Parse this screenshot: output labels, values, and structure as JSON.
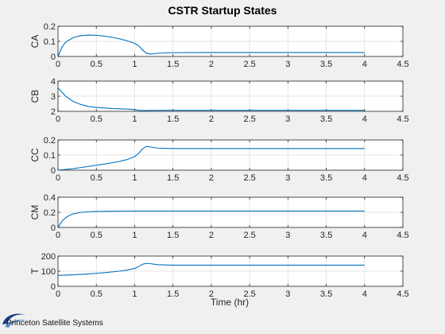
{
  "chart_data": {
    "type": "line",
    "title": "CSTR Startup States",
    "xlabel": "Time (hr)",
    "xlim": [
      0,
      4.5
    ],
    "xticks": [
      0,
      0.5,
      1,
      1.5,
      2,
      2.5,
      3,
      3.5,
      4,
      4.5
    ],
    "xtick_labels": [
      "0",
      "0.5",
      "1",
      "1.5",
      "2",
      "2.5",
      "3",
      "3.5",
      "4",
      "4.5"
    ],
    "grid": true,
    "line_color": "#0072bd",
    "subplots": [
      {
        "ylabel": "CA",
        "ylim": [
          0,
          0.2
        ],
        "yticks": [
          0,
          0.1,
          0.2
        ],
        "ytick_labels": [
          "0",
          "0.1",
          "0.2"
        ],
        "series": [
          {
            "x": [
              0,
              0.05,
              0.1,
              0.2,
              0.3,
              0.4,
              0.5,
              0.6,
              0.7,
              0.8,
              0.9,
              1.0,
              1.05,
              1.1,
              1.15,
              1.2,
              1.3,
              1.5,
              2,
              3,
              4
            ],
            "y": [
              0,
              0.06,
              0.095,
              0.125,
              0.138,
              0.142,
              0.14,
              0.135,
              0.127,
              0.117,
              0.104,
              0.087,
              0.072,
              0.045,
              0.022,
              0.016,
              0.021,
              0.025,
              0.026,
              0.026,
              0.026
            ]
          }
        ]
      },
      {
        "ylabel": "CB",
        "ylim": [
          2,
          4
        ],
        "yticks": [
          2,
          3,
          4
        ],
        "ytick_labels": [
          "2",
          "3",
          "4"
        ],
        "series": [
          {
            "x": [
              0,
              0.1,
              0.2,
              0.3,
              0.4,
              0.5,
              0.7,
              0.9,
              1.0,
              1.05,
              1.1,
              1.2,
              1.5,
              2,
              3,
              4
            ],
            "y": [
              3.55,
              3.0,
              2.65,
              2.45,
              2.32,
              2.26,
              2.19,
              2.15,
              2.12,
              2.07,
              2.05,
              2.06,
              2.07,
              2.07,
              2.07,
              2.07
            ]
          }
        ]
      },
      {
        "ylabel": "CC",
        "ylim": [
          0,
          0.2
        ],
        "yticks": [
          0,
          0.1,
          0.2
        ],
        "ytick_labels": [
          "0",
          "0.1",
          "0.2"
        ],
        "series": [
          {
            "x": [
              0,
              0.2,
              0.4,
              0.6,
              0.8,
              0.9,
              1.0,
              1.05,
              1.1,
              1.15,
              1.2,
              1.3,
              1.5,
              2,
              3,
              4
            ],
            "y": [
              0,
              0.01,
              0.025,
              0.04,
              0.058,
              0.07,
              0.09,
              0.11,
              0.14,
              0.157,
              0.154,
              0.146,
              0.143,
              0.143,
              0.143,
              0.143
            ]
          }
        ]
      },
      {
        "ylabel": "CM",
        "ylim": [
          0,
          0.4
        ],
        "yticks": [
          0,
          0.2,
          0.4
        ],
        "ytick_labels": [
          "0",
          "0.2",
          "0.4"
        ],
        "series": [
          {
            "x": [
              0,
              0.05,
              0.1,
              0.15,
              0.2,
              0.3,
              0.4,
              0.5,
              0.7,
              1.0,
              1.5,
              2,
              3,
              4
            ],
            "y": [
              0,
              0.08,
              0.13,
              0.16,
              0.18,
              0.2,
              0.208,
              0.212,
              0.215,
              0.216,
              0.216,
              0.216,
              0.216,
              0.216
            ]
          }
        ]
      },
      {
        "ylabel": "T",
        "ylim": [
          0,
          200
        ],
        "yticks": [
          0,
          100,
          200
        ],
        "ytick_labels": [
          "0",
          "100",
          "200"
        ],
        "series": [
          {
            "x": [
              0,
              0.2,
              0.4,
              0.6,
              0.8,
              0.9,
              1.0,
              1.05,
              1.1,
              1.15,
              1.2,
              1.3,
              1.5,
              2,
              3,
              4
            ],
            "y": [
              72,
              76,
              82,
              90,
              100,
              107,
              118,
              130,
              145,
              152,
              150,
              143,
              140,
              140,
              140,
              140
            ]
          }
        ]
      }
    ]
  },
  "branding": {
    "logo_text": "Princeton Satellite Systems",
    "logo_colors": [
      "#1c3f8c",
      "#5b8bd3"
    ],
    "logo_icon": "satellite-swoosh-icon"
  }
}
